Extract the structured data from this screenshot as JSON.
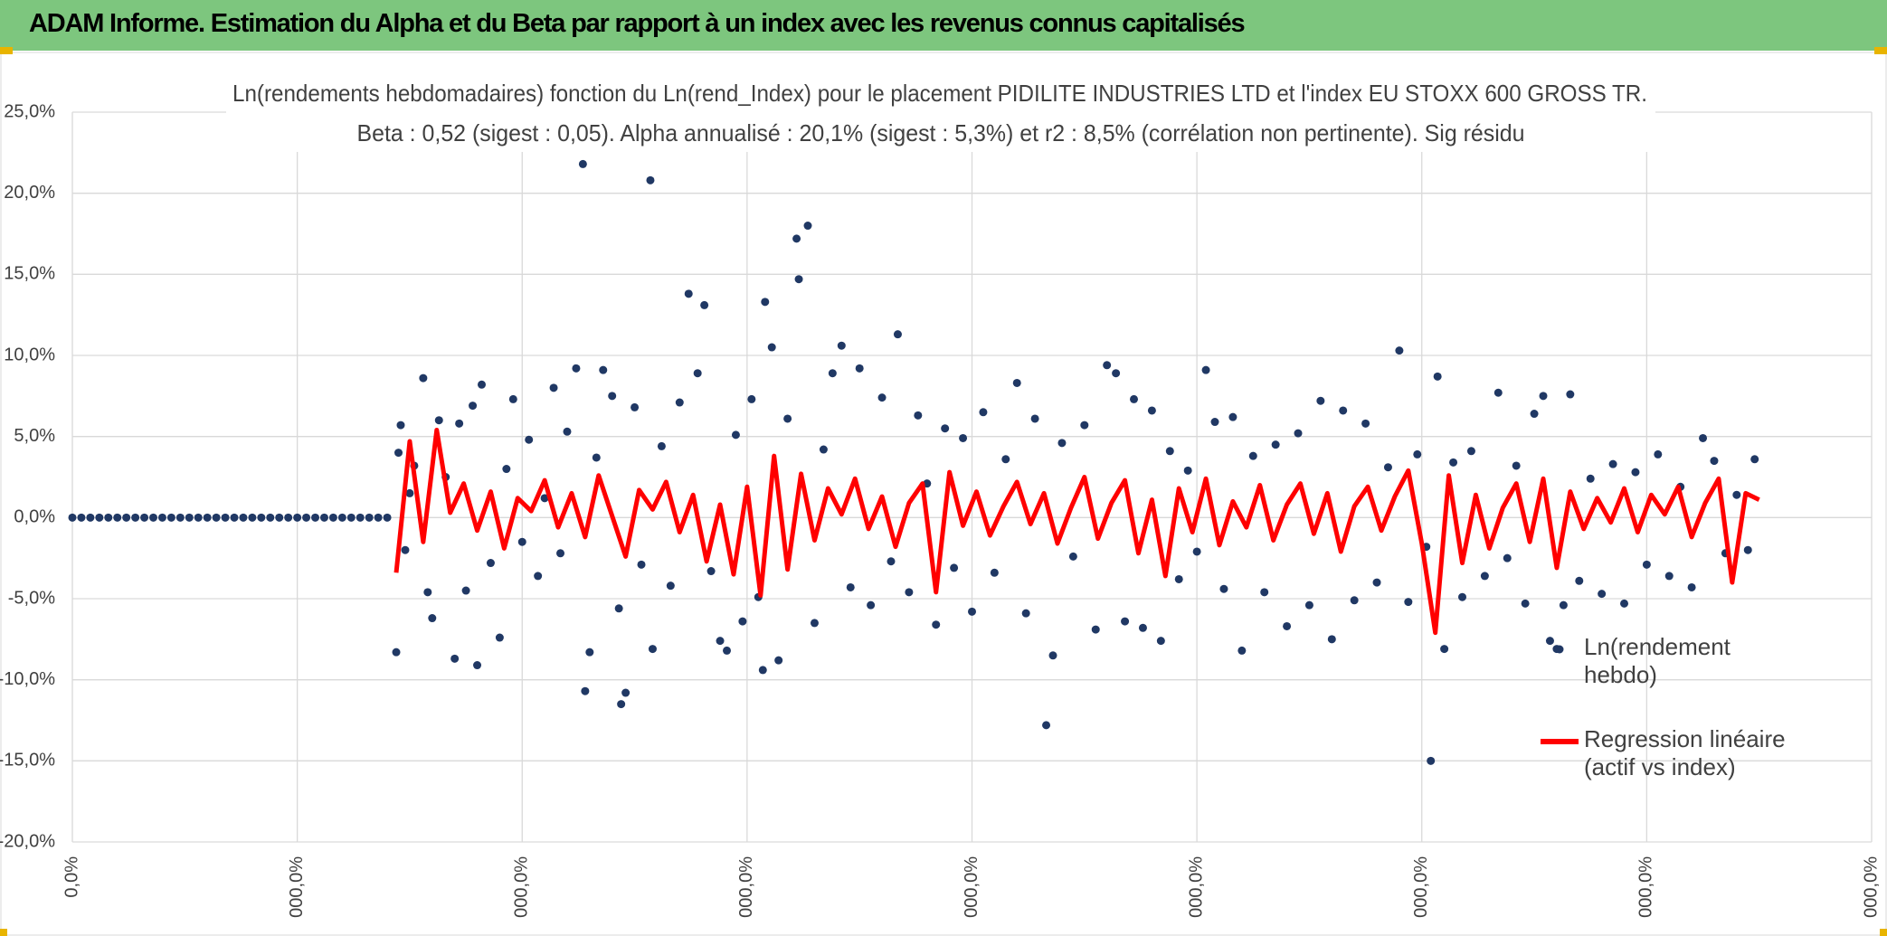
{
  "page_title": "ADAM Informe. Estimation du Alpha et du Beta par rapport à un index avec les revenus connus capitalisés",
  "chart_data": {
    "type": "scatter",
    "title": "Ln(rendements hebdomadaires) fonction du Ln(rend_Index) pour le placement PIDILITE INDUSTRIES LTD et l'index EU STOXX 600 GROSS TR.",
    "subtitle": "Beta : 0,52 (sigest : 0,05). Alpha annualisé : 20,1% (sigest : 5,3%) et r2 : 8,5% (corrélation non pertinente). Sig résidu",
    "xlim": [
      0,
      800
    ],
    "xticks": [
      {
        "value": 0,
        "label": "0,0%"
      },
      {
        "value": 100,
        "label": "000,0%"
      },
      {
        "value": 200,
        "label": "000,0%"
      },
      {
        "value": 300,
        "label": "000,0%"
      },
      {
        "value": 400,
        "label": "000,0%"
      },
      {
        "value": 500,
        "label": "000,0%"
      },
      {
        "value": 600,
        "label": "000,0%"
      },
      {
        "value": 700,
        "label": "000,0%"
      },
      {
        "value": 800,
        "label": "000,0%"
      }
    ],
    "ylim": [
      -20,
      25
    ],
    "yticks": [
      {
        "value": -20,
        "label": "-20,0%"
      },
      {
        "value": -15,
        "label": "-15,0%"
      },
      {
        "value": -10,
        "label": "-10,0%"
      },
      {
        "value": -5,
        "label": "-5,0%"
      },
      {
        "value": 0,
        "label": "0,0%"
      },
      {
        "value": 5,
        "label": "5,0%"
      },
      {
        "value": 10,
        "label": "10,0%"
      },
      {
        "value": 15,
        "label": "15,0%"
      },
      {
        "value": 20,
        "label": "20,0%"
      },
      {
        "value": 25,
        "label": "25,0%"
      }
    ],
    "grid": true,
    "legend": "right",
    "series": [
      {
        "name": "Ln(rendement hebdo)",
        "type": "scatter",
        "color": "#203864",
        "x": [
          0,
          4,
          8,
          12,
          16,
          20,
          24,
          28,
          32,
          36,
          40,
          44,
          48,
          52,
          56,
          60,
          64,
          68,
          72,
          76,
          80,
          84,
          88,
          92,
          96,
          100,
          104,
          108,
          112,
          116,
          120,
          124,
          128,
          132,
          136,
          140,
          144,
          145,
          146,
          148,
          150,
          152,
          156,
          158,
          160,
          163,
          166,
          170,
          172,
          175,
          178,
          180,
          182,
          186,
          190,
          193,
          196,
          200,
          203,
          207,
          210,
          214,
          217,
          220,
          224,
          227,
          228,
          230,
          233,
          236,
          240,
          243,
          244,
          246,
          250,
          253,
          257,
          258,
          262,
          266,
          270,
          274,
          278,
          281,
          284,
          288,
          291,
          295,
          298,
          302,
          305,
          307,
          308,
          311,
          314,
          318,
          322,
          323,
          327,
          330,
          334,
          338,
          342,
          346,
          350,
          355,
          360,
          364,
          367,
          372,
          376,
          380,
          384,
          388,
          392,
          396,
          400,
          405,
          410,
          415,
          420,
          424,
          428,
          433,
          436,
          440,
          445,
          450,
          455,
          460,
          464,
          468,
          472,
          476,
          480,
          484,
          488,
          492,
          496,
          500,
          504,
          508,
          512,
          516,
          520,
          525,
          530,
          535,
          540,
          545,
          550,
          555,
          560,
          565,
          570,
          575,
          580,
          585,
          590,
          594,
          598,
          602,
          604,
          607,
          610,
          614,
          618,
          622,
          628,
          634,
          638,
          642,
          646,
          650,
          654,
          657,
          660,
          663,
          666,
          670,
          675,
          680,
          685,
          690,
          695,
          700,
          705,
          710,
          715,
          720,
          725,
          730,
          735,
          740,
          745,
          748
        ],
        "values": [
          0,
          0,
          0,
          0,
          0,
          0,
          0,
          0,
          0,
          0,
          0,
          0,
          0,
          0,
          0,
          0,
          0,
          0,
          0,
          0,
          0,
          0,
          0,
          0,
          0,
          0,
          0,
          0,
          0,
          0,
          0,
          0,
          0,
          0,
          0,
          0,
          -8.3,
          4,
          5.7,
          -2,
          1.5,
          3.2,
          8.6,
          -4.6,
          -6.2,
          6,
          2.5,
          -8.7,
          5.8,
          -4.5,
          6.9,
          -9.1,
          8.2,
          -2.8,
          -7.4,
          3,
          7.3,
          -1.5,
          4.8,
          -3.6,
          1.2,
          8,
          -2.2,
          5.3,
          9.2,
          21.8,
          -10.7,
          -8.3,
          3.7,
          9.1,
          7.5,
          -5.6,
          -11.5,
          -10.8,
          6.8,
          -2.9,
          20.8,
          -8.1,
          4.4,
          -4.2,
          7.1,
          13.8,
          8.9,
          13.1,
          -3.3,
          -7.6,
          -8.2,
          5.1,
          -6.4,
          7.3,
          -4.9,
          -9.4,
          13.3,
          10.5,
          -8.8,
          6.1,
          17.2,
          14.7,
          18,
          -6.5,
          4.2,
          8.9,
          10.6,
          -4.3,
          9.2,
          -5.4,
          7.4,
          -2.7,
          11.3,
          -4.6,
          6.3,
          2.1,
          -6.6,
          5.5,
          -3.1,
          4.9,
          -5.8,
          6.5,
          -3.4,
          3.6,
          8.3,
          -5.9,
          6.1,
          -12.8,
          -8.5,
          4.6,
          -2.4,
          5.7,
          -6.9,
          9.4,
          8.9,
          -6.4,
          7.3,
          -6.8,
          6.6,
          -7.6,
          4.1,
          -3.8,
          2.9,
          -2.1,
          9.1,
          5.9,
          -4.4,
          6.2,
          -8.2,
          3.8,
          -4.6,
          4.5,
          -6.7,
          5.2,
          -5.4,
          7.2,
          -7.5,
          6.6,
          -5.1,
          5.8,
          -4,
          3.1,
          10.3,
          -5.2,
          3.9,
          -1.8,
          -15,
          8.7,
          -8.1,
          3.4,
          -4.9,
          4.1,
          -3.6,
          7.7,
          -2.5,
          3.2,
          -5.3,
          6.4,
          7.5,
          -7.6,
          -8.1,
          -5.4,
          7.6,
          -3.9,
          2.4,
          -4.7,
          3.3,
          -5.3,
          2.8,
          -2.9,
          3.9,
          -3.6,
          1.9,
          -4.3,
          4.9,
          3.5,
          -2.2,
          1.4,
          -2,
          3.6
        ]
      },
      {
        "name": "Regression linéaire (actif vs index)",
        "type": "line",
        "color": "#ff0000",
        "x": [
          144,
          150,
          156,
          162,
          168,
          174,
          180,
          186,
          192,
          198,
          204,
          210,
          216,
          222,
          228,
          234,
          240,
          246,
          252,
          258,
          264,
          270,
          276,
          282,
          288,
          294,
          300,
          306,
          312,
          318,
          324,
          330,
          336,
          342,
          348,
          354,
          360,
          366,
          372,
          378,
          384,
          390,
          396,
          402,
          408,
          414,
          420,
          426,
          432,
          438,
          444,
          450,
          456,
          462,
          468,
          474,
          480,
          486,
          492,
          498,
          504,
          510,
          516,
          522,
          528,
          534,
          540,
          546,
          552,
          558,
          564,
          570,
          576,
          582,
          588,
          594,
          600,
          606,
          612,
          618,
          624,
          630,
          636,
          642,
          648,
          654,
          660,
          666,
          672,
          678,
          684,
          690,
          696,
          702,
          708,
          714,
          720,
          726,
          732,
          738,
          744,
          750
        ],
        "values": [
          -3.4,
          4.7,
          -1.5,
          5.4,
          0.3,
          2.1,
          -0.8,
          1.6,
          -1.9,
          1.2,
          0.4,
          2.3,
          -0.6,
          1.5,
          -1.2,
          2.6,
          0.1,
          -2.4,
          1.7,
          0.5,
          2.2,
          -0.9,
          1.4,
          -2.7,
          0.8,
          -3.5,
          1.9,
          -4.8,
          3.8,
          -3.2,
          2.7,
          -1.4,
          1.8,
          0.2,
          2.4,
          -0.7,
          1.3,
          -1.8,
          0.9,
          2.1,
          -4.6,
          2.8,
          -0.5,
          1.6,
          -1.1,
          0.7,
          2.2,
          -0.4,
          1.5,
          -1.6,
          0.6,
          2.5,
          -1.3,
          0.9,
          2.3,
          -2.2,
          1.1,
          -3.6,
          1.8,
          -0.9,
          2.4,
          -1.7,
          1,
          -0.6,
          2,
          -1.4,
          0.8,
          2.1,
          -1,
          1.5,
          -2.1,
          0.7,
          1.9,
          -0.8,
          1.3,
          2.9,
          -1.6,
          -7.1,
          2.6,
          -2.8,
          1.4,
          -1.9,
          0.6,
          2.1,
          -1.5,
          2.4,
          -3.1,
          1.6,
          -0.7,
          1.2,
          -0.3,
          1.8,
          -0.9,
          1.4,
          0.2,
          1.9,
          -1.2,
          0.9,
          2.4,
          -4,
          1.5,
          1.1
        ]
      }
    ]
  }
}
